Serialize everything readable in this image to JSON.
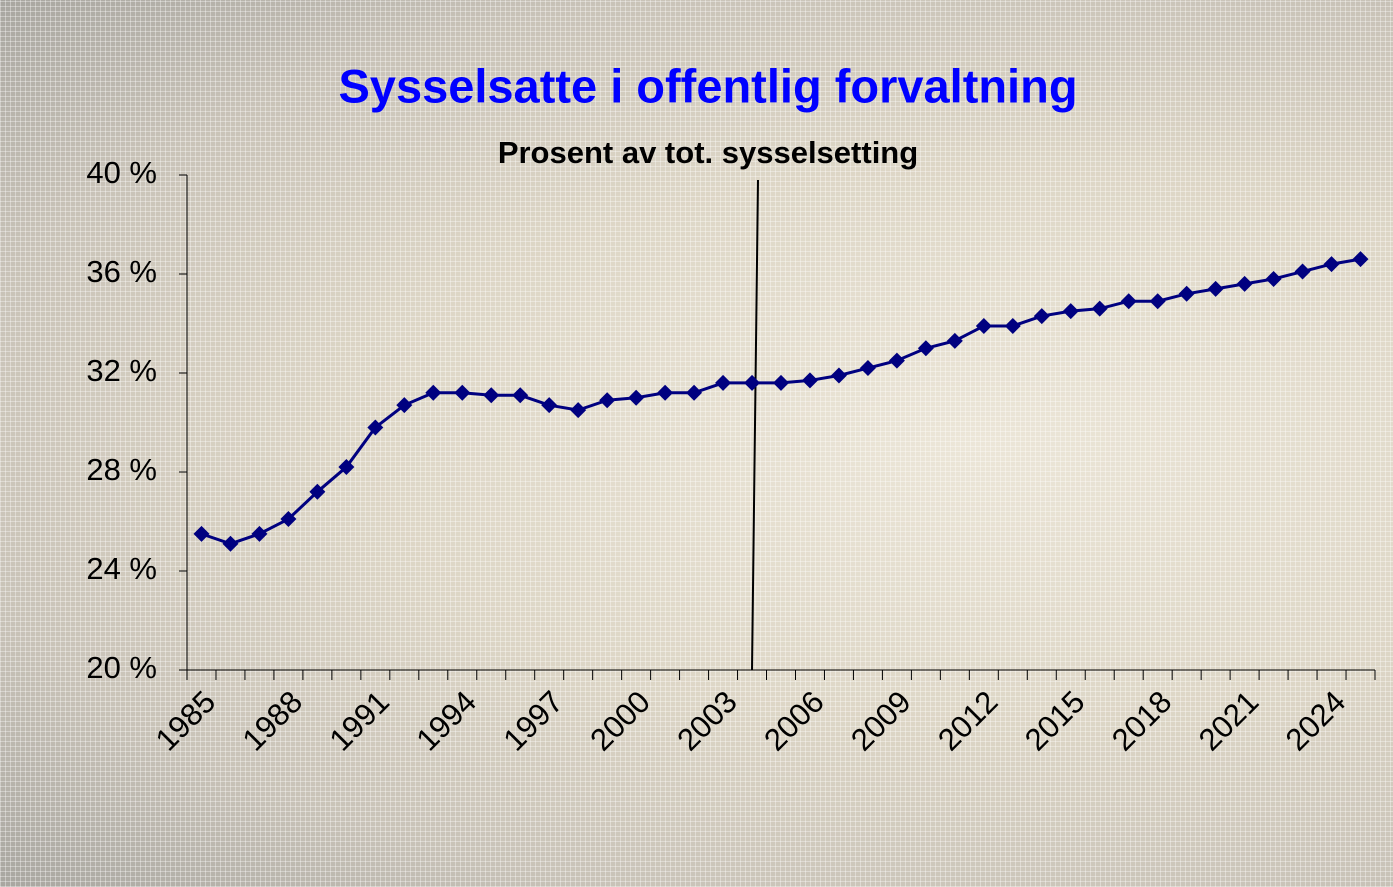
{
  "chart_data": {
    "type": "line",
    "title": "Sysselsatte i offentlig forvaltning",
    "subtitle": "Prosent av tot. sysselsetting",
    "categories": [
      "1985",
      null,
      null,
      "1988",
      null,
      null,
      "1991",
      null,
      null,
      "1994",
      null,
      null,
      "1997",
      null,
      null,
      "2000",
      null,
      null,
      "2003",
      null,
      null,
      "2006",
      null,
      null,
      "2009",
      null,
      null,
      "2012",
      null,
      null,
      "2015",
      null,
      null,
      "2018",
      null,
      null,
      "2021",
      null,
      null,
      "2024",
      null
    ],
    "series": [
      {
        "color": "#000080",
        "values": [
          25.5,
          25.1,
          25.5,
          26.1,
          27.2,
          28.2,
          29.8,
          30.7,
          31.2,
          31.2,
          31.1,
          31.1,
          30.7,
          30.5,
          30.9,
          31.0,
          31.2,
          31.2,
          31.6,
          31.6,
          31.6,
          31.7,
          31.9,
          32.2,
          32.5,
          33.0,
          33.3,
          33.9,
          33.9,
          34.3,
          34.5,
          34.6,
          34.9,
          34.9,
          35.2,
          35.4,
          35.6,
          35.8,
          36.1,
          36.4,
          36.6
        ]
      }
    ],
    "ylim": [
      20,
      40
    ],
    "yticks": [
      {
        "value": 20,
        "label": "20 %"
      },
      {
        "value": 24,
        "label": "24 %"
      },
      {
        "value": 28,
        "label": "28 %"
      },
      {
        "value": 32,
        "label": "32 %"
      },
      {
        "value": 36,
        "label": "36 %"
      },
      {
        "value": 40,
        "label": "40 %"
      }
    ]
  }
}
